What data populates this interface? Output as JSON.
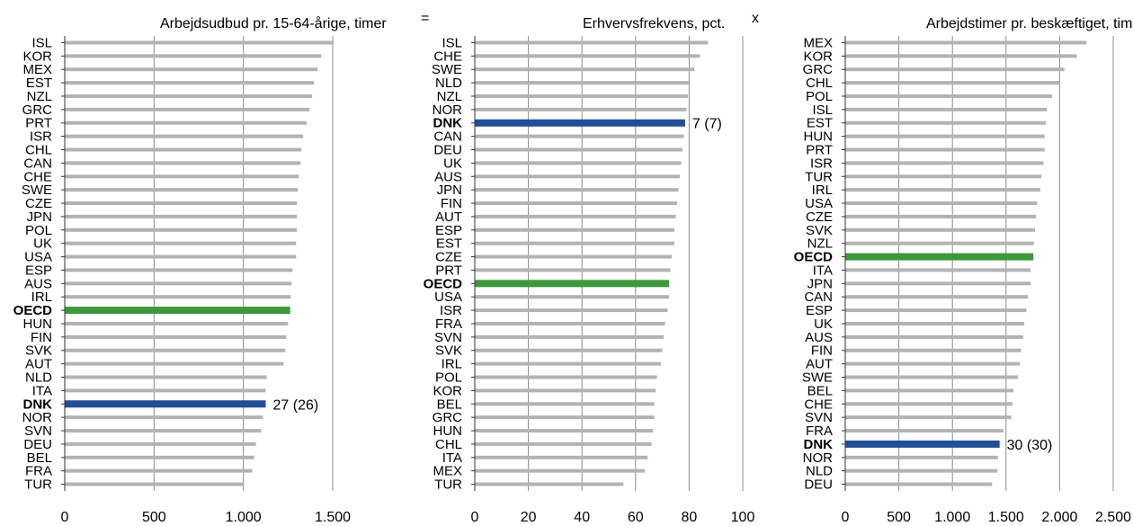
{
  "operators": {
    "equals": "=",
    "times": "x"
  },
  "chart_data": [
    {
      "type": "bar",
      "orientation": "horizontal",
      "title": "Arbejdsudbud pr. 15-64-årige, timer",
      "categories": [
        "ISL",
        "KOR",
        "MEX",
        "EST",
        "NZL",
        "GRC",
        "PRT",
        "ISR",
        "CHL",
        "CAN",
        "CHE",
        "SWE",
        "CZE",
        "JPN",
        "POL",
        "UK",
        "USA",
        "ESP",
        "AUS",
        "IRL",
        "OECD",
        "HUN",
        "FIN",
        "SVK",
        "AUT",
        "NLD",
        "ITA",
        "DNK",
        "NOR",
        "SVN",
        "DEU",
        "BEL",
        "FRA",
        "TUR"
      ],
      "values": [
        1505,
        1435,
        1415,
        1395,
        1385,
        1370,
        1355,
        1335,
        1325,
        1320,
        1310,
        1305,
        1300,
        1300,
        1300,
        1295,
        1295,
        1275,
        1270,
        1265,
        1262,
        1250,
        1240,
        1235,
        1225,
        1130,
        1125,
        1125,
        1110,
        1100,
        1070,
        1060,
        1050,
        1000
      ],
      "xlim": [
        0,
        1500
      ],
      "ticks": [
        0,
        500,
        1000,
        1500
      ],
      "tick_labels": [
        "0",
        "500",
        "1.000",
        "1.500"
      ],
      "highlights": {
        "DNK": "#1f4e9c",
        "OECD": "#3a9a3a"
      },
      "bold_labels": [
        "OECD",
        "DNK"
      ],
      "annotation": {
        "category": "DNK",
        "text": "27 (26)"
      }
    },
    {
      "type": "bar",
      "orientation": "horizontal",
      "title": "Erhvervsfrekvens, pct.",
      "categories": [
        "ISL",
        "CHE",
        "SWE",
        "NLD",
        "NZL",
        "NOR",
        "DNK",
        "CAN",
        "DEU",
        "UK",
        "AUS",
        "JPN",
        "FIN",
        "AUT",
        "ESP",
        "EST",
        "CZE",
        "PRT",
        "OECD",
        "USA",
        "ISR",
        "FRA",
        "SVN",
        "SVK",
        "IRL",
        "POL",
        "KOR",
        "BEL",
        "GRC",
        "HUN",
        "CHL",
        "ITA",
        "MEX",
        "TUR"
      ],
      "values": [
        87,
        84,
        82,
        80,
        79.5,
        79,
        78.5,
        78,
        77.5,
        77,
        76.5,
        76,
        75.5,
        75,
        74.5,
        74.5,
        73.5,
        73,
        72.5,
        72.5,
        72,
        71,
        70.5,
        70,
        69.5,
        68,
        67.5,
        67,
        67,
        66.5,
        66,
        64.5,
        63.5,
        55.5
      ],
      "xlim": [
        0,
        100
      ],
      "ticks": [
        0,
        20,
        40,
        60,
        80,
        100
      ],
      "tick_labels": [
        "0",
        "20",
        "40",
        "60",
        "80",
        "100"
      ],
      "highlights": {
        "DNK": "#1f4e9c",
        "OECD": "#3a9a3a"
      },
      "bold_labels": [
        "OECD",
        "DNK"
      ],
      "annotation": {
        "category": "DNK",
        "text": "7 (7)"
      }
    },
    {
      "type": "bar",
      "orientation": "horizontal",
      "title": "Arbejdstimer pr. beskæftiget, timer",
      "categories": [
        "MEX",
        "KOR",
        "GRC",
        "CHL",
        "POL",
        "ISL",
        "EST",
        "HUN",
        "PRT",
        "ISR",
        "TUR",
        "IRL",
        "USA",
        "CZE",
        "SVK",
        "NZL",
        "OECD",
        "ITA",
        "JPN",
        "CAN",
        "ESP",
        "UK",
        "AUS",
        "FIN",
        "AUT",
        "SWE",
        "BEL",
        "CHE",
        "SVN",
        "FRA",
        "DNK",
        "NOR",
        "NLD",
        "DEU"
      ],
      "values": [
        2250,
        2160,
        2045,
        2000,
        1930,
        1880,
        1870,
        1860,
        1860,
        1850,
        1830,
        1820,
        1790,
        1780,
        1770,
        1760,
        1755,
        1730,
        1730,
        1705,
        1690,
        1670,
        1660,
        1640,
        1630,
        1610,
        1570,
        1560,
        1550,
        1475,
        1440,
        1425,
        1420,
        1370
      ],
      "xlim": [
        0,
        2500
      ],
      "ticks": [
        0,
        500,
        1000,
        1500,
        2000,
        2500
      ],
      "tick_labels": [
        "0",
        "500",
        "1.000",
        "1.500",
        "2.000",
        "2.500"
      ],
      "highlights": {
        "DNK": "#1f4e9c",
        "OECD": "#3a9a3a"
      },
      "bold_labels": [
        "OECD",
        "DNK"
      ],
      "annotation": {
        "category": "DNK",
        "text": "30 (30)"
      }
    }
  ],
  "colors": {
    "bar": "#b3b3b3",
    "grid": "#8c8c8c",
    "axis": "#333333",
    "text": "#000000"
  }
}
